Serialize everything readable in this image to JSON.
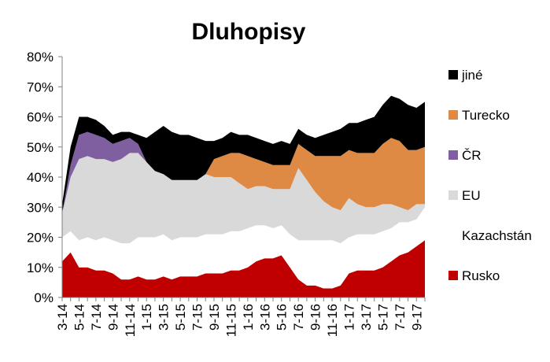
{
  "chart_data": {
    "type": "area",
    "stacked": true,
    "title": "Dluhopisy",
    "xlabel": "",
    "ylabel": "",
    "ylim": [
      0,
      80
    ],
    "y_ticks": [
      "0%",
      "10%",
      "20%",
      "30%",
      "40%",
      "50%",
      "60%",
      "70%",
      "80%"
    ],
    "x_tick_labels": [
      "3-14",
      "5-14",
      "7-14",
      "9-14",
      "11-14",
      "1-15",
      "3-15",
      "5-15",
      "7-15",
      "9-15",
      "11-15",
      "1-16",
      "3-16",
      "5-16",
      "7-16",
      "9-16",
      "11-16",
      "1-17",
      "3-17",
      "5-17",
      "7-17",
      "9-17"
    ],
    "grid": false,
    "legend_position": "right",
    "legend_order": [
      "jiné",
      "Turecko",
      "ČR",
      "EU",
      "Kazachstán",
      "Rusko"
    ],
    "x": [
      "3-14",
      "4-14",
      "5-14",
      "6-14",
      "7-14",
      "8-14",
      "9-14",
      "10-14",
      "11-14",
      "12-14",
      "1-15",
      "2-15",
      "3-15",
      "4-15",
      "5-15",
      "6-15",
      "7-15",
      "8-15",
      "9-15",
      "10-15",
      "11-15",
      "12-15",
      "1-16",
      "2-16",
      "3-16",
      "4-16",
      "5-16",
      "6-16",
      "7-16",
      "8-16",
      "9-16",
      "10-16",
      "11-16",
      "12-16",
      "1-17",
      "2-17",
      "3-17",
      "4-17",
      "5-17",
      "6-17",
      "7-17",
      "8-17",
      "9-17",
      "10-17"
    ],
    "series": [
      {
        "name": "Rusko",
        "color": "#c00000",
        "values": [
          12,
          15,
          10,
          10,
          9,
          9,
          8,
          6,
          6,
          7,
          6,
          6,
          7,
          6,
          7,
          7,
          7,
          8,
          8,
          8,
          9,
          9,
          10,
          12,
          13,
          13,
          14,
          10,
          6,
          4,
          4,
          3,
          3,
          4,
          8,
          9,
          9,
          9,
          10,
          12,
          14,
          15,
          17,
          19
        ]
      },
      {
        "name": "Kazachstán",
        "color": "#ffffff",
        "values": [
          8,
          7,
          9,
          10,
          10,
          11,
          11,
          12,
          12,
          13,
          14,
          14,
          14,
          13,
          13,
          13,
          13,
          13,
          13,
          13,
          13,
          13,
          13,
          12,
          11,
          10,
          10,
          11,
          13,
          15,
          15,
          16,
          16,
          14,
          12,
          12,
          12,
          12,
          12,
          11,
          11,
          10,
          9,
          11
        ]
      },
      {
        "name": "EU",
        "color": "#d9d9d9",
        "values": [
          8,
          18,
          27,
          27,
          27,
          26,
          26,
          28,
          30,
          28,
          25,
          22,
          20,
          20,
          19,
          19,
          19,
          20,
          19,
          19,
          18,
          16,
          13,
          13,
          13,
          13,
          12,
          15,
          24,
          20,
          16,
          13,
          11,
          11,
          13,
          10,
          9,
          9,
          9,
          8,
          5,
          4,
          5,
          1
        ]
      },
      {
        "name": "ČR",
        "color": "#7f5fa0",
        "values": [
          0,
          4,
          8,
          8,
          8,
          7,
          6,
          6,
          5,
          3,
          0,
          0,
          0,
          0,
          0,
          0,
          0,
          0,
          0,
          0,
          0,
          0,
          0,
          0,
          0,
          0,
          0,
          0,
          0,
          0,
          0,
          0,
          0,
          0,
          0,
          0,
          0,
          0,
          0,
          0,
          0,
          0,
          0,
          0
        ]
      },
      {
        "name": "Turecko",
        "color": "#de8a45",
        "values": [
          0,
          0,
          0,
          0,
          0,
          0,
          0,
          0,
          0,
          0,
          0,
          0,
          0,
          0,
          0,
          0,
          0,
          0,
          6,
          7,
          8,
          10,
          11,
          9,
          8,
          8,
          8,
          8,
          8,
          10,
          12,
          15,
          17,
          18,
          16,
          17,
          18,
          18,
          20,
          22,
          22,
          20,
          18,
          19
        ]
      },
      {
        "name": "jiné",
        "color": "#000000",
        "values": [
          3,
          6,
          6,
          5,
          5,
          4,
          3,
          3,
          2,
          3,
          8,
          13,
          16,
          16,
          15,
          15,
          14,
          11,
          6,
          6,
          7,
          6,
          7,
          7,
          7,
          7,
          8,
          7,
          5,
          5,
          6,
          7,
          8,
          9,
          9,
          10,
          11,
          12,
          13,
          14,
          14,
          15,
          14,
          15
        ]
      }
    ]
  }
}
